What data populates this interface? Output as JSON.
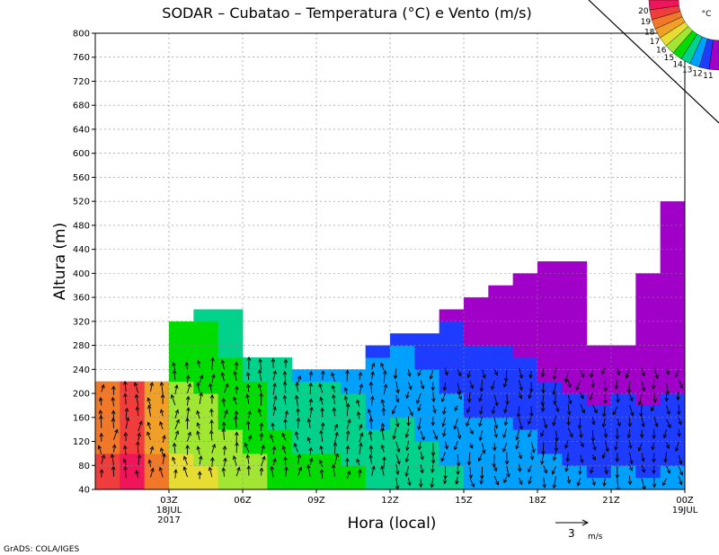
{
  "chart_data": {
    "type": "heatmap",
    "title": "SODAR – Cubatao – Temperatura (°C) e Vento (m/s)",
    "xlabel": "Hora (local)",
    "ylabel": "Altura (m)",
    "ylim": [
      40,
      800
    ],
    "y_ticks": [
      40,
      80,
      120,
      160,
      200,
      240,
      280,
      320,
      360,
      400,
      440,
      480,
      520,
      560,
      600,
      640,
      680,
      720,
      760,
      800
    ],
    "x_ticks": [
      {
        "label": "03Z",
        "sub1": "18JUL",
        "sub2": "2017"
      },
      {
        "label": "06Z",
        "sub1": "",
        "sub2": ""
      },
      {
        "label": "09Z",
        "sub1": "",
        "sub2": ""
      },
      {
        "label": "12Z",
        "sub1": "",
        "sub2": ""
      },
      {
        "label": "15Z",
        "sub1": "",
        "sub2": ""
      },
      {
        "label": "18Z",
        "sub1": "",
        "sub2": ""
      },
      {
        "label": "21Z",
        "sub1": "",
        "sub2": ""
      },
      {
        "label": "00Z",
        "sub1": "19JUL",
        "sub2": ""
      }
    ],
    "x_tick_hours": [
      3,
      6,
      9,
      12,
      15,
      18,
      21,
      24
    ],
    "xlim_hours": [
      0,
      24
    ],
    "data_top_height": [
      {
        "from": 0,
        "to": 3,
        "top": 220
      },
      {
        "from": 3,
        "to": 4,
        "top": 320
      },
      {
        "from": 4,
        "to": 6,
        "top": 340
      },
      {
        "from": 6,
        "to": 7,
        "top": 260
      },
      {
        "from": 7,
        "to": 8,
        "top": 260
      },
      {
        "from": 8,
        "to": 11,
        "top": 240
      },
      {
        "from": 11,
        "to": 12,
        "top": 280
      },
      {
        "from": 12,
        "to": 14,
        "top": 300
      },
      {
        "from": 14,
        "to": 15,
        "top": 340
      },
      {
        "from": 15,
        "to": 16,
        "top": 360
      },
      {
        "from": 16,
        "to": 17,
        "top": 380
      },
      {
        "from": 17,
        "to": 18,
        "top": 400
      },
      {
        "from": 18,
        "to": 20,
        "top": 420
      },
      {
        "from": 20,
        "to": 22,
        "top": 280
      },
      {
        "from": 22,
        "to": 23,
        "top": 400
      },
      {
        "from": 23,
        "to": 24,
        "top": 520
      }
    ],
    "temperature_by_hour": [
      {
        "hour": 0.5,
        "temp": 19.5
      },
      {
        "hour": 1.5,
        "temp": 20.5
      },
      {
        "hour": 2.5,
        "temp": 18.5
      },
      {
        "hour": 3.5,
        "temp": 16.5
      },
      {
        "hour": 4.5,
        "temp": 16.2
      },
      {
        "hour": 5.5,
        "temp": 15.8
      },
      {
        "hour": 6.5,
        "temp": 15.5
      },
      {
        "hour": 7.5,
        "temp": 14.8
      },
      {
        "hour": 8.5,
        "temp": 14.4
      },
      {
        "hour": 9.5,
        "temp": 14.5
      },
      {
        "hour": 10.5,
        "temp": 14.3
      },
      {
        "hour": 11.5,
        "temp": 13.8
      },
      {
        "hour": 12.5,
        "temp": 14.0
      },
      {
        "hour": 13.5,
        "temp": 13.6
      },
      {
        "hour": 14.5,
        "temp": 13.2
      },
      {
        "hour": 15.5,
        "temp": 13.0
      },
      {
        "hour": 16.5,
        "temp": 13.0
      },
      {
        "hour": 17.5,
        "temp": 12.8
      },
      {
        "hour": 18.5,
        "temp": 12.4
      },
      {
        "hour": 19.5,
        "temp": 12.2
      },
      {
        "hour": 20.5,
        "temp": 12.1
      },
      {
        "hour": 21.5,
        "temp": 12.2
      },
      {
        "hour": 22.5,
        "temp": 12.1
      },
      {
        "hour": 23.5,
        "temp": 12.2
      }
    ],
    "colorbar": {
      "unit": "°C",
      "labels": [
        "20",
        "19",
        "18",
        "17",
        "16",
        "15",
        "14",
        "13",
        "12",
        "11"
      ],
      "colors": [
        "#f0145a",
        "#f03c3c",
        "#f07828",
        "#f0a028",
        "#e6dc32",
        "#a0e632",
        "#00dc00",
        "#00d28c",
        "#00a0ff",
        "#1e3cff",
        "#a000c8"
      ]
    },
    "wind_reference": {
      "value": "3",
      "unit": "m/s"
    }
  },
  "credit": "GrADS: COLA/IGES"
}
